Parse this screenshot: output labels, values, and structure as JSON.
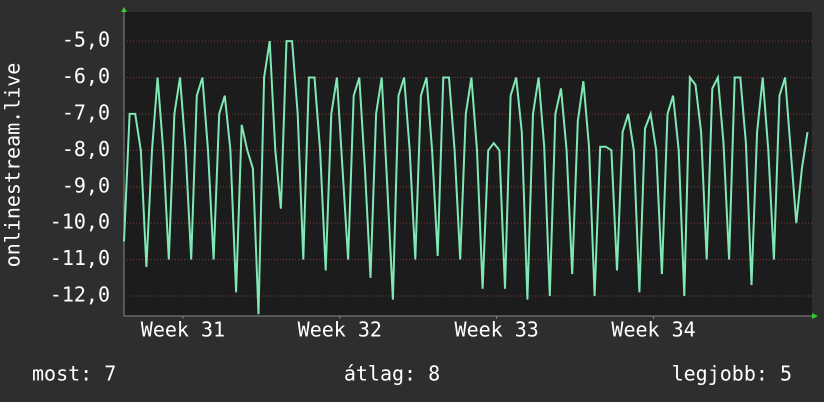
{
  "chart_data": {
    "type": "line",
    "y_label": "onlinestream.live",
    "x": [
      0,
      0.25,
      0.5,
      0.75,
      1,
      1.25,
      1.5,
      1.75,
      2,
      2.25,
      2.5,
      2.75,
      3,
      3.25,
      3.5,
      3.75,
      4,
      4.25,
      4.5,
      4.75,
      5,
      5.25,
      5.5,
      5.75,
      6,
      6.25,
      6.5,
      6.75,
      7,
      7.25,
      7.5,
      7.75,
      8,
      8.25,
      8.5,
      8.75,
      9,
      9.25,
      9.5,
      9.75,
      10,
      10.25,
      10.5,
      10.75,
      11,
      11.25,
      11.5,
      11.75,
      12,
      12.25,
      12.5,
      12.75,
      13,
      13.25,
      13.5,
      13.75,
      14,
      14.25,
      14.5,
      14.75,
      15,
      15.25,
      15.5,
      15.75,
      16,
      16.25,
      16.5,
      16.75,
      17,
      17.25,
      17.5,
      17.75,
      18,
      18.25,
      18.5,
      18.75,
      19,
      19.25,
      19.5,
      19.75,
      20,
      20.25,
      20.5,
      20.75,
      21,
      21.25,
      21.5,
      21.75,
      22,
      22.25,
      22.5,
      22.75,
      23,
      23.25,
      23.5,
      23.75,
      24,
      24.25,
      24.5,
      24.75,
      25,
      25.25,
      25.5,
      25.75,
      26,
      26.25,
      26.5,
      26.75,
      27,
      27.25,
      27.5,
      27.75,
      28,
      28.25,
      28.5,
      28.75,
      29,
      29.25,
      29.5,
      29.75,
      30,
      30.25,
      30.5
    ],
    "series": [
      {
        "color": "#7fe8b4",
        "values": [
          -10.5,
          -7,
          -7,
          -8,
          -11.2,
          -8,
          -6,
          -8,
          -11,
          -7,
          -6,
          -8,
          -11,
          -6.5,
          -6,
          -8,
          -11,
          -7,
          -6.5,
          -8,
          -11.9,
          -7.3,
          -8,
          -8.5,
          -12.5,
          -6,
          -5,
          -8,
          -9.6,
          -5,
          -5,
          -7,
          -11,
          -6,
          -6,
          -8,
          -11.3,
          -7,
          -6,
          -8.5,
          -11,
          -6.5,
          -6,
          -8.5,
          -11.5,
          -7,
          -6,
          -9,
          -12.1,
          -6.5,
          -6,
          -8,
          -11,
          -6.5,
          -6,
          -8,
          -10.9,
          -6,
          -6,
          -8,
          -11,
          -7,
          -6,
          -8,
          -11.8,
          -8,
          -7.8,
          -8,
          -11.8,
          -6.5,
          -6,
          -7.5,
          -12.1,
          -7,
          -6,
          -7.9,
          -12,
          -7,
          -6.3,
          -8,
          -11.4,
          -7.2,
          -6.1,
          -7.9,
          -12,
          -7.9,
          -7.9,
          -8,
          -11.3,
          -7.5,
          -7,
          -8,
          -11.9,
          -7.4,
          -7,
          -8,
          -11.4,
          -7,
          -6.5,
          -8,
          -12,
          -6,
          -6.2,
          -7.5,
          -11,
          -6.3,
          -6,
          -7.8,
          -11,
          -6,
          -6,
          -7.8,
          -11.7,
          -7.5,
          -6,
          -8,
          -11,
          -6.5,
          -6,
          -8,
          -10,
          -8.5,
          -7.5
        ]
      }
    ],
    "xlim": [
      0,
      30.7
    ],
    "xticks": [
      {
        "value": 2.63,
        "label": "Week 31"
      },
      {
        "value": 9.63,
        "label": "Week 32"
      },
      {
        "value": 16.63,
        "label": "Week 33"
      },
      {
        "value": 23.63,
        "label": "Week 34"
      }
    ],
    "ylim": [
      -12.55,
      -4.2
    ],
    "yticks": [
      {
        "value": -5,
        "label": "-5,0"
      },
      {
        "value": -6,
        "label": "-6,0"
      },
      {
        "value": -7,
        "label": "-7,0"
      },
      {
        "value": -8,
        "label": "-8,0"
      },
      {
        "value": -9,
        "label": "-9,0"
      },
      {
        "value": -10,
        "label": "-10,0"
      },
      {
        "value": -11,
        "label": "-11,0"
      },
      {
        "value": -12,
        "label": "-12,0"
      }
    ],
    "grid": true,
    "footer": [
      "most: 7",
      "átlag: 8",
      "legjobb: 5"
    ]
  }
}
